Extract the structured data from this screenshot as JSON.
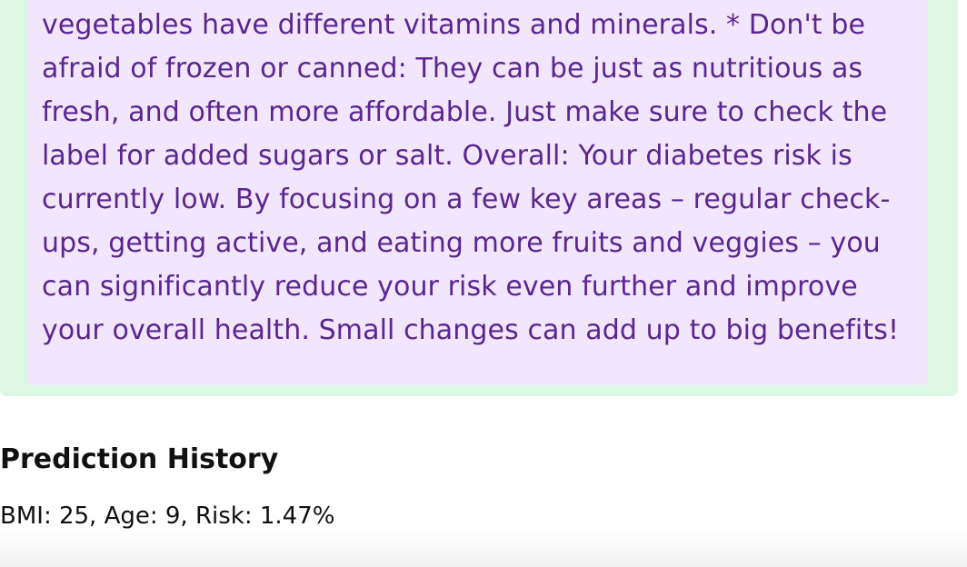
{
  "advice": {
    "lines": [
      "vegetables have different vitamins and minerals. * Don't be",
      "afraid of frozen or canned: They can be just as nutritious as",
      "fresh, and often more affordable. Just make sure to check the",
      "label for added sugars or salt. Overall: Your diabetes risk is",
      "currently low. By focusing on a few key areas – regular check-",
      "ups, getting active, and eating more fruits and veggies – you",
      "can significantly reduce your risk even further and improve",
      "your overall health. Small changes can add up to big benefits!"
    ]
  },
  "history": {
    "title": "Prediction History",
    "items": [
      "BMI: 25, Age: 9, Risk: 1.47%"
    ]
  },
  "colors": {
    "result_card_bg": "#dcf7e4",
    "advice_bg": "#f1e6fb",
    "advice_text": "#5a2690"
  }
}
